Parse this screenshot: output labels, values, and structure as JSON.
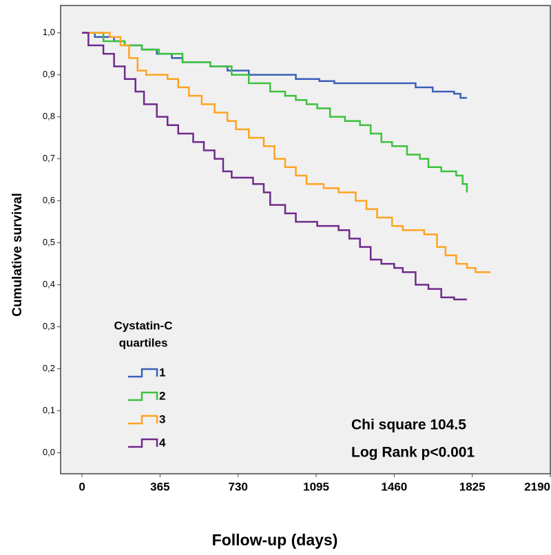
{
  "chart_data": {
    "type": "step",
    "xlabel": "Follow-up (days)",
    "ylabel": "Cumulative survival",
    "legend_title": [
      "Cystatin-C",
      "quartiles"
    ],
    "annotations": [
      "Chi square 104.5",
      "Log Rank p<0.001"
    ],
    "xlim": [
      -100,
      2190
    ],
    "xticks": [
      0,
      365,
      730,
      1095,
      1460,
      1825,
      2190
    ],
    "ylim": [
      -0.05,
      1.065
    ],
    "yticks": [
      {
        "value": 0,
        "label": "0,0"
      },
      {
        "value": 0.1,
        "label": "0,1"
      },
      {
        "value": 0.2,
        "label": "0,2"
      },
      {
        "value": 0.3,
        "label": "0,3"
      },
      {
        "value": 0.4,
        "label": "0,4"
      },
      {
        "value": 0.5,
        "label": "0,5"
      },
      {
        "value": 0.6,
        "label": "0,6"
      },
      {
        "value": 0.7,
        "label": "0,7"
      },
      {
        "value": 0.8,
        "label": "0,8"
      },
      {
        "value": 0.9,
        "label": "0,9"
      },
      {
        "value": 1,
        "label": "1,0"
      }
    ],
    "series": [
      {
        "name": "1",
        "color": "#3a5fb8",
        "x": [
          0,
          60,
          150,
          200,
          280,
          350,
          420,
          470,
          600,
          680,
          780,
          1000,
          1110,
          1180,
          1560,
          1640,
          1740,
          1770,
          1800
        ],
        "values": [
          1,
          0.99,
          0.98,
          0.97,
          0.96,
          0.95,
          0.94,
          0.93,
          0.92,
          0.91,
          0.9,
          0.89,
          0.885,
          0.88,
          0.87,
          0.86,
          0.855,
          0.845,
          0.845
        ]
      },
      {
        "name": "2",
        "color": "#3cc23c",
        "x": [
          0,
          100,
          200,
          280,
          360,
          470,
          600,
          700,
          780,
          880,
          950,
          1000,
          1050,
          1100,
          1160,
          1230,
          1300,
          1350,
          1400,
          1450,
          1520,
          1580,
          1620,
          1680,
          1750,
          1780,
          1800
        ],
        "values": [
          1,
          0.98,
          0.97,
          0.96,
          0.95,
          0.93,
          0.92,
          0.9,
          0.88,
          0.86,
          0.85,
          0.84,
          0.83,
          0.82,
          0.8,
          0.79,
          0.78,
          0.76,
          0.74,
          0.73,
          0.71,
          0.7,
          0.68,
          0.67,
          0.66,
          0.64,
          0.62
        ]
      },
      {
        "name": "3",
        "color": "#ffa31f",
        "x": [
          0,
          130,
          180,
          220,
          260,
          300,
          400,
          450,
          500,
          560,
          620,
          680,
          720,
          780,
          850,
          900,
          950,
          1000,
          1050,
          1130,
          1200,
          1280,
          1330,
          1380,
          1450,
          1500,
          1600,
          1660,
          1700,
          1750,
          1800,
          1840,
          1910
        ],
        "values": [
          1,
          0.99,
          0.97,
          0.94,
          0.91,
          0.9,
          0.89,
          0.87,
          0.85,
          0.83,
          0.81,
          0.79,
          0.77,
          0.75,
          0.73,
          0.7,
          0.68,
          0.66,
          0.64,
          0.63,
          0.62,
          0.6,
          0.58,
          0.56,
          0.54,
          0.53,
          0.52,
          0.49,
          0.47,
          0.45,
          0.44,
          0.43,
          0.43
        ]
      },
      {
        "name": "4",
        "color": "#6f2a8a",
        "x": [
          0,
          30,
          100,
          150,
          200,
          250,
          290,
          350,
          400,
          450,
          520,
          570,
          620,
          660,
          700,
          800,
          850,
          880,
          950,
          1000,
          1100,
          1200,
          1250,
          1300,
          1350,
          1400,
          1460,
          1500,
          1560,
          1620,
          1680,
          1740,
          1800
        ],
        "values": [
          1,
          0.97,
          0.95,
          0.92,
          0.89,
          0.86,
          0.83,
          0.8,
          0.78,
          0.76,
          0.74,
          0.72,
          0.7,
          0.67,
          0.655,
          0.64,
          0.62,
          0.59,
          0.57,
          0.55,
          0.54,
          0.53,
          0.51,
          0.49,
          0.46,
          0.45,
          0.44,
          0.43,
          0.4,
          0.39,
          0.37,
          0.365,
          0.365
        ]
      }
    ]
  }
}
